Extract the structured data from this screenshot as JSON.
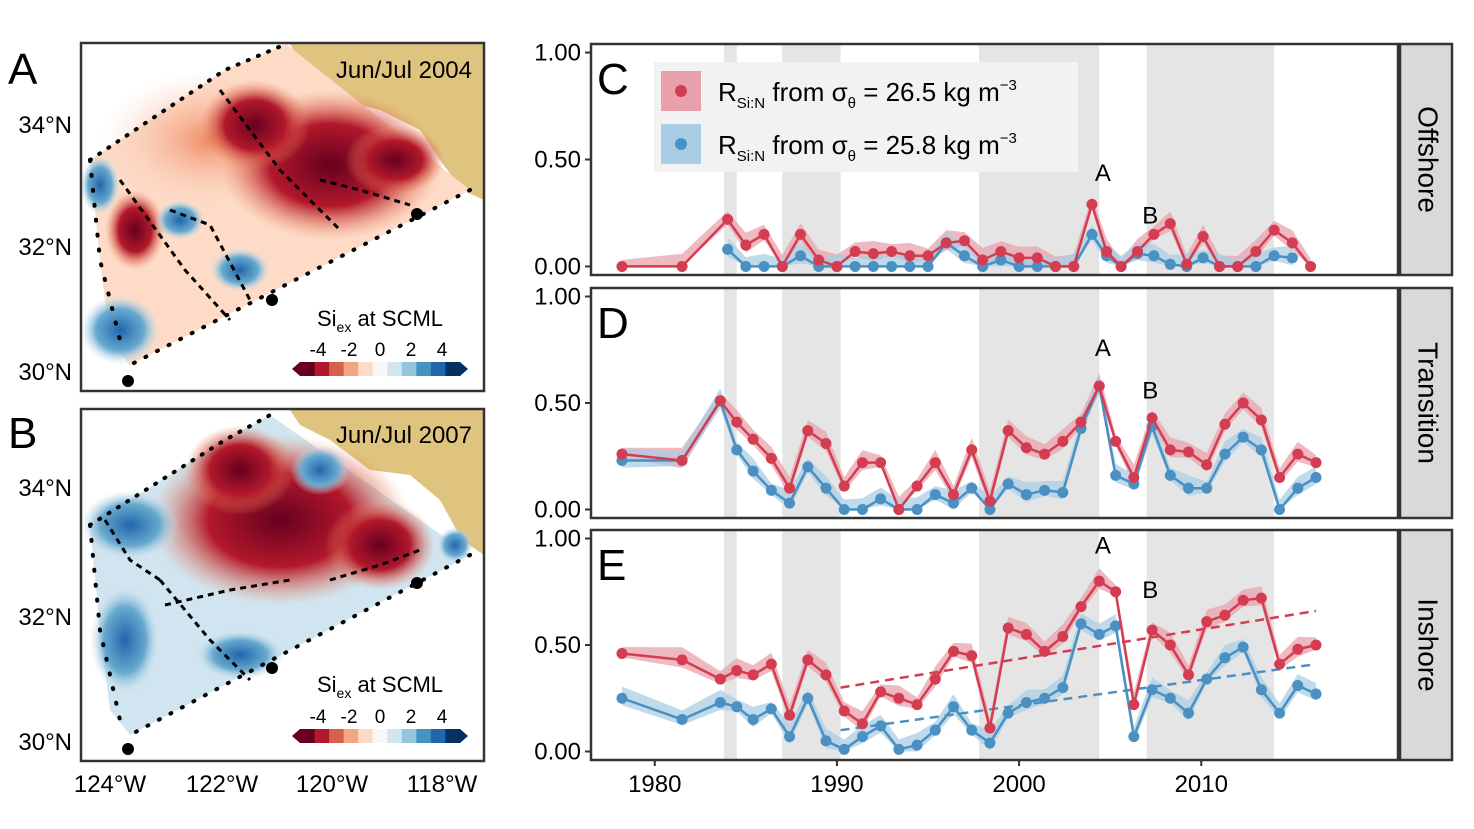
{
  "maps": [
    {
      "panel_letter": "A",
      "title": "Jun/Jul 2004",
      "colorbar_label": "Si",
      "colorbar_sub": "ex",
      "colorbar_suffix": " at SCML",
      "colorbar_ticks": [
        "-4",
        "-2",
        "0",
        "2",
        "4"
      ]
    },
    {
      "panel_letter": "B",
      "title": "Jun/Jul 2007",
      "colorbar_label": "Si",
      "colorbar_sub": "ex",
      "colorbar_suffix": " at SCML",
      "colorbar_ticks": [
        "-4",
        "-2",
        "0",
        "2",
        "4"
      ]
    }
  ],
  "map_axes": {
    "y_ticks": [
      "34°N",
      "32°N",
      "30°N"
    ],
    "x_ticks": [
      "124°W",
      "122°W",
      "120°W",
      "118°W"
    ]
  },
  "colors": {
    "red": "#d43d51",
    "blue": "#4a90c2",
    "red_band": "#e8a1ab",
    "blue_band": "#a9cde4",
    "land": "#dfc47f",
    "strip": "#d9d9d9",
    "shade": "#e5e5e5"
  },
  "legend": [
    {
      "main": "R",
      "sub": "Si:N",
      "text": " from σ",
      "sub2": "θ",
      "text2": " = 26.5 kg m",
      "sup": "−3",
      "color": "#d43d51"
    },
    {
      "main": "R",
      "sub": "Si:N",
      "text": " from σ",
      "sub2": "θ",
      "text2": " = 25.8 kg m",
      "sup": "−3",
      "color": "#4a90c2"
    }
  ],
  "chart_data": {
    "type": "line",
    "x_ticks": [
      1980,
      1990,
      2000,
      2010
    ],
    "xlim": [
      1976.5,
      2020.8
    ],
    "ylim": [
      -0.04,
      1.04
    ],
    "y_ticks": [
      "0.00",
      "0.50",
      "1.00"
    ],
    "shaded_periods": [
      [
        1983.8,
        1984.5
      ],
      [
        1987,
        1990.2
      ],
      [
        1997.8,
        2004.4
      ],
      [
        2007,
        2014
      ]
    ],
    "panels": [
      {
        "letter": "C",
        "strip": "Offshore",
        "annotations": [
          {
            "text": "A",
            "x": 2004.6,
            "y": 0.4
          },
          {
            "text": "B",
            "x": 2007.2,
            "y": 0.2
          }
        ],
        "series": [
          {
            "name": "R Si:N from σθ = 26.5 kg m−3",
            "color": "#d43d51",
            "x": [
              1978.2,
              1981.5,
              1984.0,
              1985.0,
              1986.0,
              1987.0,
              1988.0,
              1989.0,
              1990.0,
              1991.0,
              1992.0,
              1993.0,
              1994.0,
              1995.0,
              1996.0,
              1997.0,
              1998.0,
              1999.0,
              2000.0,
              2001.0,
              2002.0,
              2003.0,
              2004.0,
              2004.8,
              2005.6,
              2006.5,
              2007.4,
              2008.3,
              2009.2,
              2010.1,
              2011.0,
              2012.0,
              2013.0,
              2014.0,
              2015.0,
              2016.0
            ],
            "y": [
              0.0,
              0.0,
              0.22,
              0.1,
              0.15,
              0.0,
              0.15,
              0.03,
              0.0,
              0.07,
              0.06,
              0.07,
              0.05,
              0.05,
              0.11,
              0.12,
              0.03,
              0.07,
              0.04,
              0.04,
              0.0,
              0.0,
              0.29,
              0.07,
              0.0,
              0.07,
              0.15,
              0.2,
              0.01,
              0.14,
              0.0,
              0.0,
              0.07,
              0.17,
              0.11,
              0.0
            ]
          },
          {
            "name": "R Si:N from σθ = 25.8 kg m−3",
            "color": "#4a90c2",
            "x": [
              1984.0,
              1985.0,
              1986.0,
              1987.0,
              1988.0,
              1989.0,
              1990.0,
              1991.0,
              1992.0,
              1993.0,
              1994.0,
              1995.0,
              1996.0,
              1997.0,
              1998.0,
              1999.0,
              2000.0,
              2001.0,
              2002.0,
              2003.0,
              2004.0,
              2004.8,
              2005.6,
              2006.5,
              2007.4,
              2008.3,
              2009.2,
              2010.1,
              2011.0,
              2012.0,
              2013.0,
              2014.0,
              2015.0
            ],
            "y": [
              0.08,
              0.0,
              0.0,
              0.0,
              0.05,
              0.0,
              0.0,
              0.0,
              0.0,
              0.0,
              0.0,
              0.0,
              0.11,
              0.05,
              0.0,
              0.03,
              0.0,
              0.0,
              0.0,
              0.0,
              0.15,
              0.05,
              0.0,
              0.06,
              0.05,
              0.01,
              0.0,
              0.04,
              0.0,
              0.0,
              0.0,
              0.05,
              0.04
            ]
          }
        ]
      },
      {
        "letter": "D",
        "strip": "Transition",
        "annotations": [
          {
            "text": "A",
            "x": 2004.6,
            "y": 0.72
          },
          {
            "text": "B",
            "x": 2007.2,
            "y": 0.52
          }
        ],
        "series": [
          {
            "name": "R Si:N from σθ = 26.5 kg m−3",
            "color": "#d43d51",
            "x": [
              1978.2,
              1981.5,
              1983.6,
              1984.5,
              1985.4,
              1986.4,
              1987.4,
              1988.4,
              1989.4,
              1990.4,
              1991.4,
              1992.4,
              1993.4,
              1994.4,
              1995.4,
              1996.4,
              1997.4,
              1998.4,
              1999.4,
              2000.4,
              2001.4,
              2002.4,
              2003.4,
              2004.4,
              2005.3,
              2006.3,
              2007.3,
              2008.3,
              2009.3,
              2010.3,
              2011.3,
              2012.3,
              2013.3,
              2014.3,
              2015.3,
              2016.3
            ],
            "y": [
              0.26,
              0.23,
              0.51,
              0.41,
              0.33,
              0.24,
              0.1,
              0.37,
              0.31,
              0.11,
              0.22,
              0.22,
              0.0,
              0.11,
              0.22,
              0.07,
              0.28,
              0.04,
              0.37,
              0.29,
              0.26,
              0.32,
              0.41,
              0.58,
              0.32,
              0.15,
              0.43,
              0.28,
              0.27,
              0.21,
              0.4,
              0.5,
              0.42,
              0.15,
              0.26,
              0.22
            ]
          },
          {
            "name": "R Si:N from σθ = 25.8 kg m−3",
            "color": "#4a90c2",
            "x": [
              1978.2,
              1981.5,
              1983.6,
              1984.5,
              1985.4,
              1986.4,
              1987.4,
              1988.4,
              1989.4,
              1990.4,
              1991.4,
              1992.4,
              1993.4,
              1994.4,
              1995.4,
              1996.4,
              1997.4,
              1998.4,
              1999.4,
              2000.4,
              2001.4,
              2002.4,
              2003.4,
              2004.4,
              2005.3,
              2006.3,
              2007.3,
              2008.3,
              2009.3,
              2010.3,
              2011.3,
              2012.3,
              2013.3,
              2014.3,
              2015.3,
              2016.3
            ],
            "y": [
              0.23,
              0.23,
              0.51,
              0.28,
              0.18,
              0.09,
              0.03,
              0.2,
              0.1,
              0.0,
              0.0,
              0.05,
              0.0,
              0.0,
              0.07,
              0.03,
              0.1,
              0.0,
              0.12,
              0.07,
              0.09,
              0.08,
              0.38,
              0.58,
              0.16,
              0.12,
              0.39,
              0.16,
              0.1,
              0.1,
              0.26,
              0.34,
              0.28,
              0.0,
              0.1,
              0.15
            ]
          }
        ]
      },
      {
        "letter": "E",
        "strip": "Inshore",
        "annotations": [
          {
            "text": "A",
            "x": 2004.6,
            "y": 0.93
          },
          {
            "text": "B",
            "x": 2007.2,
            "y": 0.72
          }
        ],
        "trendlines": [
          {
            "color": "#d43d51",
            "x": [
              1990.2,
              2016.3
            ],
            "y": [
              0.3,
              0.66
            ]
          },
          {
            "color": "#4a90c2",
            "x": [
              1990.2,
              2016.3
            ],
            "y": [
              0.1,
              0.41
            ]
          }
        ],
        "series": [
          {
            "name": "R Si:N from σθ = 26.5 kg m−3",
            "color": "#d43d51",
            "x": [
              1978.2,
              1981.5,
              1983.6,
              1984.5,
              1985.4,
              1986.4,
              1987.4,
              1988.4,
              1989.4,
              1990.4,
              1991.4,
              1992.4,
              1993.4,
              1994.4,
              1995.4,
              1996.4,
              1997.4,
              1998.4,
              1999.4,
              2000.4,
              2001.4,
              2002.4,
              2003.4,
              2004.4,
              2005.3,
              2006.3,
              2007.3,
              2008.3,
              2009.3,
              2010.3,
              2011.3,
              2012.3,
              2013.3,
              2014.3,
              2015.3,
              2016.3
            ],
            "y": [
              0.46,
              0.43,
              0.34,
              0.38,
              0.36,
              0.41,
              0.17,
              0.43,
              0.36,
              0.19,
              0.13,
              0.28,
              0.25,
              0.22,
              0.34,
              0.47,
              0.45,
              0.11,
              0.58,
              0.55,
              0.47,
              0.54,
              0.68,
              0.8,
              0.75,
              0.22,
              0.57,
              0.5,
              0.36,
              0.61,
              0.64,
              0.71,
              0.72,
              0.41,
              0.48,
              0.5
            ]
          },
          {
            "name": "R Si:N from σθ = 25.8 kg m−3",
            "color": "#4a90c2",
            "x": [
              1978.2,
              1981.5,
              1983.6,
              1984.5,
              1985.4,
              1986.4,
              1987.4,
              1988.4,
              1989.4,
              1990.4,
              1991.4,
              1992.4,
              1993.4,
              1994.4,
              1995.4,
              1996.4,
              1997.4,
              1998.4,
              1999.4,
              2000.4,
              2001.4,
              2002.4,
              2003.4,
              2004.4,
              2005.3,
              2006.3,
              2007.3,
              2008.3,
              2009.3,
              2010.3,
              2011.3,
              2012.3,
              2013.3,
              2014.3,
              2015.3,
              2016.3
            ],
            "y": [
              0.25,
              0.15,
              0.23,
              0.21,
              0.15,
              0.2,
              0.07,
              0.25,
              0.05,
              0.01,
              0.07,
              0.12,
              0.01,
              0.03,
              0.1,
              0.21,
              0.1,
              0.04,
              0.18,
              0.23,
              0.25,
              0.3,
              0.6,
              0.55,
              0.59,
              0.07,
              0.29,
              0.25,
              0.18,
              0.34,
              0.44,
              0.49,
              0.29,
              0.18,
              0.31,
              0.27
            ]
          }
        ]
      }
    ]
  }
}
